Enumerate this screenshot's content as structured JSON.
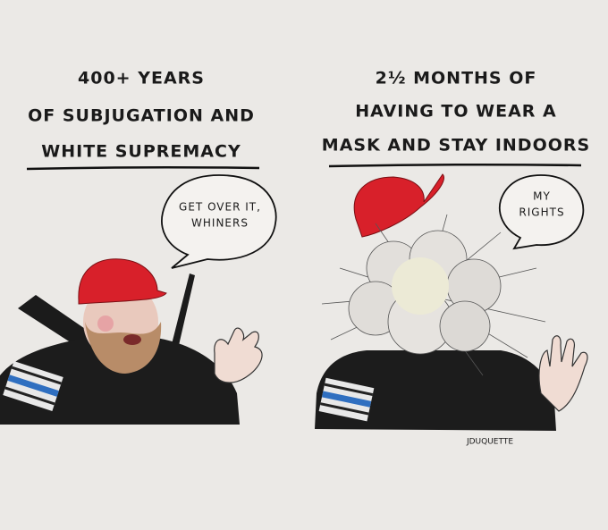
{
  "panels": [
    {
      "caption": [
        "400+ YEARS",
        "OF SUBJUGATION AND",
        "WHITE SUPREMACY"
      ],
      "speech": [
        "GET OVER IT,",
        "WHINERS"
      ]
    },
    {
      "caption": [
        "2½ MONTHS OF",
        "HAVING TO WEAR A",
        "MASK AND STAY INDOORS"
      ],
      "speech": [
        "MY",
        "RIGHTS"
      ]
    }
  ],
  "signature": "JDUQUETTE"
}
